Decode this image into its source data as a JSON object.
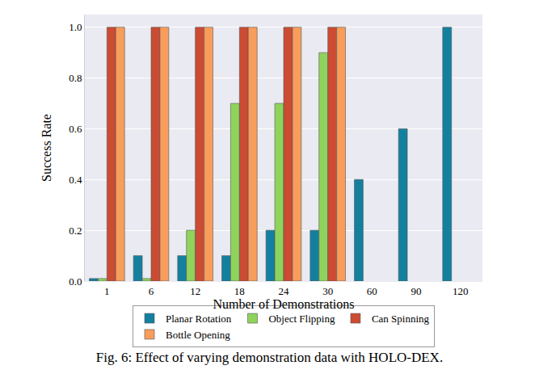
{
  "chart_data": {
    "type": "bar",
    "title": "Fig. 6: Effect of varying demonstration data with HOLO-DEX.",
    "x_label": "Number of Demonstrations",
    "y_label": "Success Rate",
    "categories": [
      "1",
      "6",
      "12",
      "18",
      "24",
      "30",
      "60",
      "90",
      "120"
    ],
    "series": [
      {
        "name": "Planar Rotation",
        "color": "#13809f",
        "values": [
          0.01,
          0.1,
          0.1,
          0.1,
          0.2,
          0.2,
          0.4,
          0.6,
          1.0
        ]
      },
      {
        "name": "Object Flipping",
        "color": "#8fd35c",
        "values": [
          0.01,
          0.01,
          0.2,
          0.7,
          0.7,
          0.9,
          null,
          null,
          null
        ]
      },
      {
        "name": "Can Spinning",
        "color": "#cc4b33",
        "values": [
          1.0,
          1.0,
          1.0,
          1.0,
          1.0,
          1.0,
          null,
          null,
          null
        ]
      },
      {
        "name": "Bottle Opening",
        "color": "#f89d5b",
        "values": [
          1.0,
          1.0,
          1.0,
          1.0,
          1.0,
          1.0,
          null,
          null,
          null
        ]
      }
    ],
    "ylim": [
      0,
      1.05
    ],
    "yticks": [
      {
        "value": 0,
        "label": "0.0"
      },
      0.2,
      0.4,
      0.6,
      0.8,
      {
        "value": 1,
        "label": "1.0"
      }
    ],
    "grid": true,
    "legend": "bottom"
  }
}
